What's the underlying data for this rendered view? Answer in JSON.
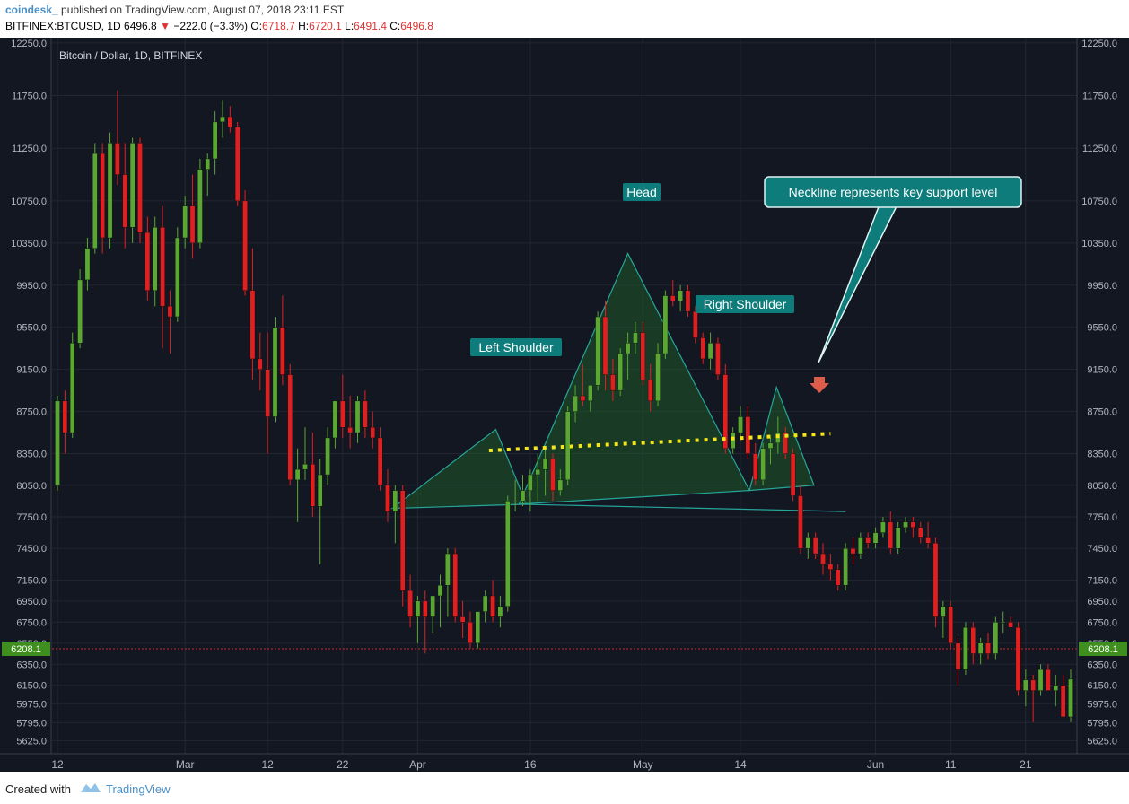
{
  "header": {
    "brand": "coindesk_",
    "published": "published on TradingView.com, August 07, 2018 23:11 EST",
    "symbol": "BITFINEX:BTCUSD, 1D",
    "last": "6496.8",
    "arrow": "▼",
    "change": "−222.0 (−3.3%)",
    "o_label": "O:",
    "o_value": "6718.7",
    "h_label": "H:",
    "h_value": "6720.1",
    "l_label": "L:",
    "l_value": "6491.4",
    "c_label": "C:",
    "c_value": "6496.8"
  },
  "footer": {
    "created": "Created with",
    "brand": "TradingView"
  },
  "colors": {
    "background": "#131722",
    "up": "#5aa832",
    "down": "#e02020",
    "pattern_fill": "#1f5a2a",
    "pattern_line": "#26a69a",
    "neckline": "#f5e716",
    "label_bg": "#0e7c7b",
    "price_badge": "#3f8f1e",
    "current_price_line": "#c62828"
  },
  "chart_data": {
    "type": "candlestick",
    "title": "Bitcoin / Dollar, 1D, BITFINEX",
    "ylim": [
      5500,
      12300
    ],
    "x_ticks": [
      {
        "i": 0,
        "label": "12"
      },
      {
        "i": 17,
        "label": "Mar"
      },
      {
        "i": 28,
        "label": "12"
      },
      {
        "i": 38,
        "label": "22"
      },
      {
        "i": 48,
        "label": "Apr"
      },
      {
        "i": 63,
        "label": "16"
      },
      {
        "i": 78,
        "label": "May"
      },
      {
        "i": 91,
        "label": "14"
      },
      {
        "i": 109,
        "label": "Jun"
      },
      {
        "i": 119,
        "label": "11"
      },
      {
        "i": 129,
        "label": "21"
      }
    ],
    "y_ticks": [
      5625,
      5795,
      5975,
      6150,
      6350,
      6550,
      6750,
      6950,
      7150,
      7450,
      7750,
      8050,
      8350,
      8750,
      9150,
      9550,
      9950,
      10350,
      10750,
      11250,
      11750,
      12250
    ],
    "y_tick_labels": [
      "5625.0",
      "5795.0",
      "5975.0",
      "6150.0",
      "6350.0",
      "6550.0",
      "6750.0",
      "6950.0",
      "7150.0",
      "7450.0",
      "7750.0",
      "8050.0",
      "8350.0",
      "8750.0",
      "9150.0",
      "9550.0",
      "9950.0",
      "10350.0",
      "10750.0",
      "11250.0",
      "11750.0",
      "12250.0"
    ],
    "current_price": 6496.8,
    "badge_price": 6208.1,
    "badge_label": "6208.1",
    "candles": [
      [
        8050,
        8900,
        8000,
        8850
      ],
      [
        8850,
        8950,
        8350,
        8550
      ],
      [
        8550,
        9500,
        8500,
        9400
      ],
      [
        9400,
        10100,
        9350,
        10000
      ],
      [
        10000,
        10400,
        9900,
        10300
      ],
      [
        10300,
        11300,
        10250,
        11200
      ],
      [
        11200,
        11300,
        10250,
        10400
      ],
      [
        10400,
        11400,
        10300,
        11300
      ],
      [
        11300,
        11800,
        10900,
        11000
      ],
      [
        11000,
        11300,
        10300,
        10500
      ],
      [
        10500,
        11350,
        10350,
        11300
      ],
      [
        11300,
        11350,
        10350,
        10450
      ],
      [
        10450,
        10600,
        9800,
        9900
      ],
      [
        9900,
        10600,
        9750,
        10500
      ],
      [
        10500,
        10700,
        9350,
        9750
      ],
      [
        9750,
        9900,
        9300,
        9650
      ],
      [
        9650,
        10500,
        9600,
        10400
      ],
      [
        10400,
        10800,
        10300,
        10700
      ],
      [
        10700,
        11000,
        10200,
        10350
      ],
      [
        10350,
        11150,
        10300,
        11050
      ],
      [
        11050,
        11200,
        10800,
        11150
      ],
      [
        11150,
        11600,
        11000,
        11500
      ],
      [
        11500,
        11700,
        11350,
        11550
      ],
      [
        11550,
        11650,
        11400,
        11450
      ],
      [
        11450,
        11500,
        10700,
        10750
      ],
      [
        10750,
        10850,
        9850,
        9900
      ],
      [
        9900,
        10300,
        9050,
        9250
      ],
      [
        9250,
        9500,
        8950,
        9150
      ],
      [
        9150,
        9500,
        8350,
        8700
      ],
      [
        8700,
        9650,
        8650,
        9550
      ],
      [
        9550,
        9850,
        9000,
        9100
      ],
      [
        9100,
        9200,
        8050,
        8100
      ],
      [
        8100,
        8400,
        7700,
        8200
      ],
      [
        8200,
        8600,
        8100,
        8250
      ],
      [
        8250,
        8550,
        7750,
        7850
      ],
      [
        7850,
        8300,
        7300,
        8150
      ],
      [
        8150,
        8600,
        8050,
        8500
      ],
      [
        8500,
        8850,
        8400,
        8850
      ],
      [
        8850,
        9100,
        8500,
        8600
      ],
      [
        8600,
        8900,
        8400,
        8550
      ],
      [
        8550,
        8900,
        8450,
        8850
      ],
      [
        8850,
        8950,
        8500,
        8600
      ],
      [
        8600,
        8750,
        8400,
        8500
      ],
      [
        8500,
        8600,
        8000,
        8050
      ],
      [
        8050,
        8200,
        7700,
        7800
      ],
      [
        7800,
        8050,
        7500,
        8000
      ],
      [
        8000,
        8050,
        6900,
        7050
      ],
      [
        7050,
        7200,
        6700,
        6800
      ],
      [
        6800,
        7000,
        6550,
        6950
      ],
      [
        6950,
        7050,
        6450,
        6800
      ],
      [
        6800,
        7000,
        6650,
        7000
      ],
      [
        7000,
        7200,
        6700,
        7100
      ],
      [
        7100,
        7450,
        6800,
        7400
      ],
      [
        7400,
        7450,
        6750,
        6800
      ],
      [
        6800,
        6950,
        6600,
        6750
      ],
      [
        6750,
        6850,
        6500,
        6550
      ],
      [
        6550,
        6850,
        6500,
        6850
      ],
      [
        6850,
        7050,
        6750,
        7000
      ],
      [
        7000,
        7150,
        6750,
        6800
      ],
      [
        6800,
        7000,
        6700,
        6900
      ],
      [
        6900,
        7950,
        6850,
        7900
      ],
      [
        7900,
        8100,
        7800,
        7900
      ],
      [
        7900,
        8150,
        7850,
        8000
      ],
      [
        8000,
        8200,
        7800,
        8150
      ],
      [
        8150,
        8350,
        7900,
        8200
      ],
      [
        8200,
        8400,
        7950,
        8300
      ],
      [
        8300,
        8350,
        7900,
        8000
      ],
      [
        8000,
        8200,
        7950,
        8100
      ],
      [
        8100,
        8800,
        8050,
        8750
      ],
      [
        8750,
        9000,
        8650,
        8900
      ],
      [
        8900,
        9200,
        8800,
        8850
      ],
      [
        8850,
        9000,
        8750,
        9000
      ],
      [
        9000,
        9700,
        8950,
        9650
      ],
      [
        9650,
        9800,
        8950,
        9100
      ],
      [
        9100,
        9250,
        8850,
        8950
      ],
      [
        8950,
        9350,
        8900,
        9300
      ],
      [
        9300,
        9500,
        9050,
        9400
      ],
      [
        9400,
        9600,
        9300,
        9500
      ],
      [
        9500,
        9600,
        9000,
        9050
      ],
      [
        9050,
        9200,
        8750,
        8850
      ],
      [
        8850,
        9400,
        8800,
        9300
      ],
      [
        9300,
        9900,
        9250,
        9850
      ],
      [
        9850,
        10000,
        9750,
        9800
      ],
      [
        9800,
        9950,
        9700,
        9900
      ],
      [
        9900,
        9950,
        9650,
        9700
      ],
      [
        9700,
        9750,
        9400,
        9450
      ],
      [
        9450,
        9500,
        9200,
        9250
      ],
      [
        9250,
        9500,
        9150,
        9400
      ],
      [
        9400,
        9450,
        9050,
        9100
      ],
      [
        9100,
        9200,
        8350,
        8400
      ],
      [
        8400,
        8600,
        8350,
        8550
      ],
      [
        8550,
        8800,
        8500,
        8700
      ],
      [
        8700,
        8800,
        8300,
        8350
      ],
      [
        8350,
        8450,
        8050,
        8100
      ],
      [
        8100,
        8450,
        8050,
        8400
      ],
      [
        8400,
        8500,
        8250,
        8450
      ],
      [
        8450,
        8700,
        8350,
        8550
      ],
      [
        8550,
        8600,
        8300,
        8350
      ],
      [
        8350,
        8400,
        7900,
        7950
      ],
      [
        7950,
        8050,
        7400,
        7450
      ],
      [
        7450,
        7600,
        7350,
        7550
      ],
      [
        7550,
        7600,
        7350,
        7400
      ],
      [
        7400,
        7500,
        7200,
        7300
      ],
      [
        7300,
        7400,
        7150,
        7250
      ],
      [
        7250,
        7300,
        7050,
        7100
      ],
      [
        7100,
        7500,
        7050,
        7450
      ],
      [
        7450,
        7550,
        7300,
        7400
      ],
      [
        7400,
        7600,
        7350,
        7550
      ],
      [
        7550,
        7600,
        7450,
        7500
      ],
      [
        7500,
        7650,
        7450,
        7600
      ],
      [
        7600,
        7750,
        7550,
        7700
      ],
      [
        7700,
        7800,
        7400,
        7450
      ],
      [
        7450,
        7700,
        7400,
        7650
      ],
      [
        7650,
        7750,
        7600,
        7700
      ],
      [
        7700,
        7750,
        7550,
        7650
      ],
      [
        7650,
        7700,
        7500,
        7550
      ],
      [
        7550,
        7700,
        7450,
        7500
      ],
      [
        7500,
        7550,
        6700,
        6800
      ],
      [
        6800,
        6950,
        6600,
        6900
      ],
      [
        6900,
        6950,
        6500,
        6550
      ],
      [
        6550,
        6600,
        6150,
        6300
      ],
      [
        6300,
        6750,
        6250,
        6700
      ],
      [
        6700,
        6750,
        6350,
        6450
      ],
      [
        6450,
        6600,
        6350,
        6550
      ],
      [
        6550,
        6650,
        6400,
        6450
      ],
      [
        6450,
        6800,
        6400,
        6750
      ],
      [
        6750,
        6850,
        6650,
        6750
      ],
      [
        6750,
        6800,
        6700,
        6700
      ],
      [
        6700,
        6750,
        6050,
        6100
      ],
      [
        6100,
        6300,
        5950,
        6200
      ],
      [
        6200,
        6250,
        5800,
        6100
      ],
      [
        6100,
        6350,
        6050,
        6300
      ],
      [
        6300,
        6350,
        6100,
        6100
      ],
      [
        6100,
        6250,
        5950,
        6150
      ],
      [
        6150,
        6250,
        5850,
        5850
      ],
      [
        5850,
        6300,
        5800,
        6208
      ]
    ],
    "pattern_triangles": [
      [
        [
          44.6,
          7830
        ],
        [
          58.4,
          8580
        ],
        [
          62.5,
          7870
        ]
      ],
      [
        [
          61.5,
          7870
        ],
        [
          76.0,
          10250
        ],
        [
          92.2,
          8000
        ]
      ],
      [
        [
          92.2,
          8000
        ],
        [
          95.8,
          8980
        ],
        [
          100.8,
          8050
        ]
      ]
    ],
    "neckline": [
      [
        57.5,
        8380
      ],
      [
        103.0,
        8540
      ]
    ],
    "base_line": [
      [
        61.5,
        7870
      ],
      [
        105.0,
        7800
      ]
    ],
    "annotations": [
      {
        "id": "left",
        "text": "Left Shoulder"
      },
      {
        "id": "head",
        "text": "Head"
      },
      {
        "id": "right",
        "text": "Right Shoulder"
      },
      {
        "id": "callout",
        "text": "Neckline represents key support level"
      }
    ]
  }
}
